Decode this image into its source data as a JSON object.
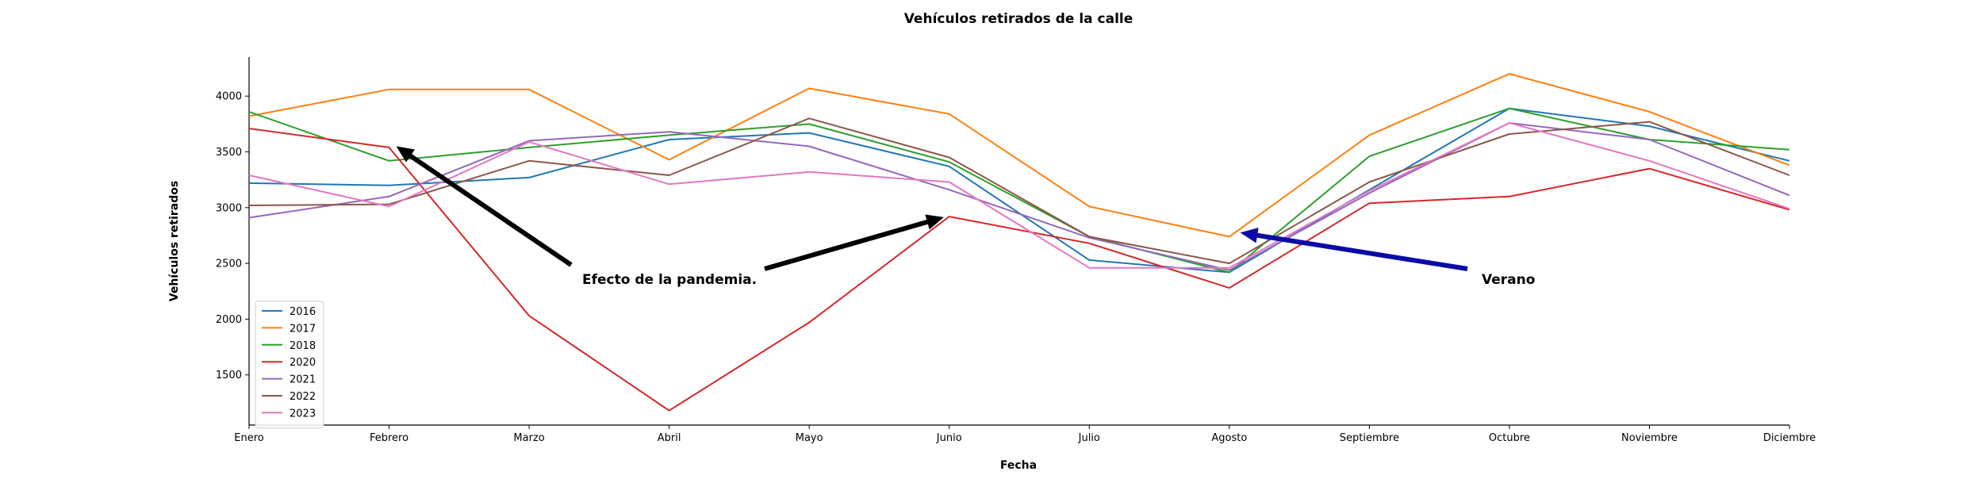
{
  "chart_data": {
    "type": "line",
    "title": "Vehículos retirados de la calle",
    "xlabel": "Fecha",
    "ylabel": "Vehículos retirados",
    "categories": [
      "Enero",
      "Febrero",
      "Marzo",
      "Abril",
      "Mayo",
      "Junio",
      "Julio",
      "Agosto",
      "Septiembre",
      "Octubre",
      "Noviembre",
      "Diciembre"
    ],
    "ylim": [
      1050,
      4350
    ],
    "yticks": [
      1500,
      2000,
      2500,
      3000,
      3500,
      4000
    ],
    "grid": false,
    "legend_position": "lower-left",
    "series": [
      {
        "name": "2016",
        "color": "#1f77b4",
        "values": [
          3220,
          3200,
          3270,
          3610,
          3670,
          3370,
          2530,
          2420,
          3160,
          3890,
          3730,
          3420
        ]
      },
      {
        "name": "2017",
        "color": "#ff7f0e",
        "values": [
          3820,
          4060,
          4060,
          3430,
          4070,
          3840,
          3010,
          2740,
          3650,
          4200,
          3860,
          3380
        ]
      },
      {
        "name": "2018",
        "color": "#2ca02c",
        "values": [
          3860,
          3420,
          3540,
          3650,
          3750,
          3410,
          2740,
          2420,
          3460,
          3890,
          3610,
          3520
        ]
      },
      {
        "name": "2020",
        "color": "#d62728",
        "values": [
          3710,
          3540,
          2030,
          1180,
          1970,
          2920,
          2680,
          2280,
          3040,
          3100,
          3350,
          2980
        ]
      },
      {
        "name": "2021",
        "color": "#9467bd",
        "values": [
          2910,
          3100,
          3600,
          3680,
          3550,
          3160,
          2730,
          2440,
          3130,
          3760,
          3610,
          3110
        ]
      },
      {
        "name": "2022",
        "color": "#8c564b",
        "values": [
          3020,
          3030,
          3420,
          3290,
          3800,
          3450,
          2740,
          2500,
          3230,
          3660,
          3770,
          3290
        ]
      },
      {
        "name": "2023",
        "color": "#e377c2",
        "values": [
          3290,
          3010,
          3590,
          3210,
          3320,
          3230,
          2460,
          2460,
          3150,
          3760,
          3420,
          2990
        ]
      }
    ],
    "annotations": [
      {
        "text": "Efecto de la pandemia.",
        "color": "#000000",
        "targets": [
          {
            "x": "Febrero",
            "y": 3560
          },
          {
            "x": "Junio",
            "y": 2940
          }
        ]
      },
      {
        "text": "Verano",
        "color": "#0000ff",
        "targets": [
          {
            "x": "Agosto",
            "y": 2810
          }
        ]
      }
    ]
  }
}
